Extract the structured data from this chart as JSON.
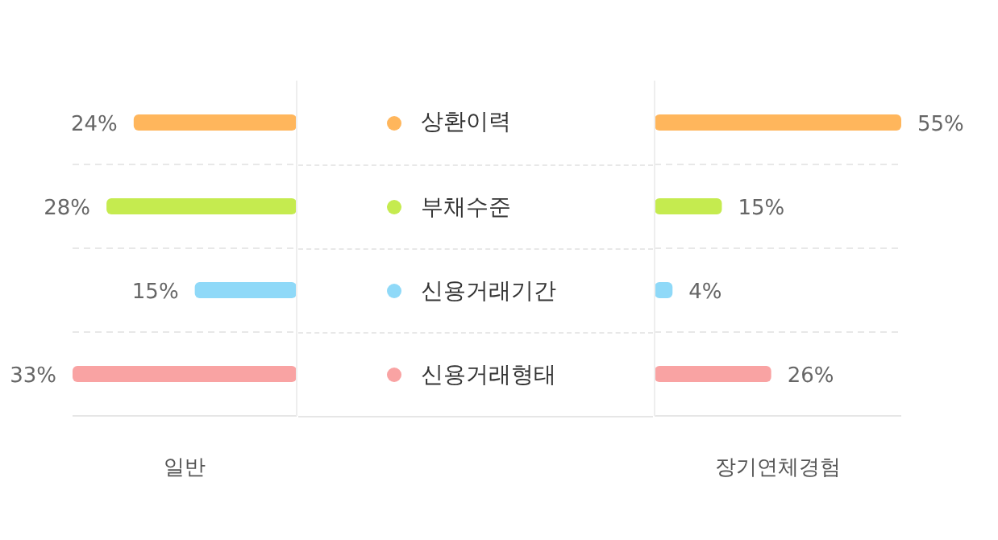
{
  "chart_data": [
    {
      "type": "bar",
      "orientation": "horizontal",
      "xlabel": "일반",
      "categories": [
        "상환이력",
        "부채수준",
        "신용거래기간",
        "신용거래형태"
      ],
      "values": [
        24,
        28,
        15,
        33
      ],
      "value_labels": [
        "24%",
        "28%",
        "15%",
        "33%"
      ],
      "colors": [
        "#ffb65c",
        "#c5eb4f",
        "#8fd9f8",
        "#f9a3a3"
      ],
      "grid": "y",
      "legend": false
    },
    {
      "type": "bar",
      "orientation": "horizontal",
      "xlabel": "장기연체경험",
      "categories": [
        null,
        null,
        null,
        null
      ],
      "values": [
        55,
        15,
        4,
        26
      ],
      "value_labels": [
        "55%",
        "15%",
        "4%",
        "26%"
      ],
      "colors": [
        "#ffb65c",
        "#c5eb4f",
        "#8fd9f8",
        "#f9a3a3"
      ],
      "grid": "y",
      "legend": false
    }
  ]
}
